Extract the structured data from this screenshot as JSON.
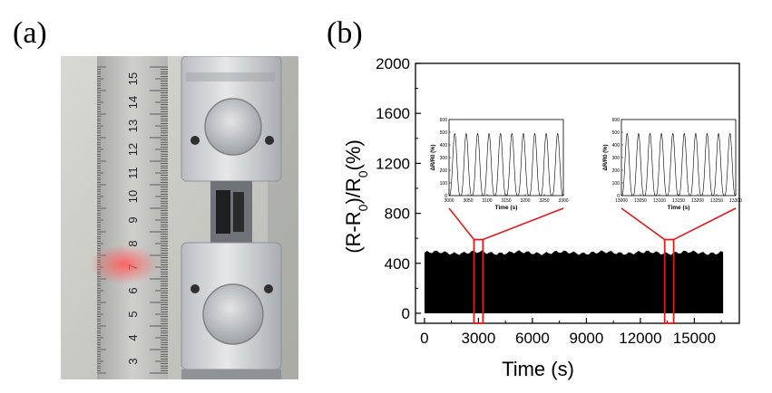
{
  "panels": [
    {
      "label": "(a)"
    },
    {
      "label": "(b)"
    }
  ],
  "photo": {
    "ruler_numbers": [
      "15",
      "14",
      "13",
      "12",
      "11",
      "10",
      "9",
      "8",
      "7",
      "6",
      "5",
      "4",
      "3"
    ]
  },
  "chart_data": {
    "type": "area",
    "xlabel": "Time (s)",
    "ylabel": "(R-R0)/R0(%)",
    "xlim": [
      -500,
      17500
    ],
    "ylim": [
      -80,
      2000
    ],
    "xticks": [
      0,
      3000,
      6000,
      9000,
      12000,
      15000
    ],
    "yticks": [
      0,
      400,
      800,
      1200,
      1600,
      2000
    ],
    "series": [
      {
        "x_range": [
          0,
          16600
        ],
        "min": 0,
        "max": 500,
        "description": "dense cyclic signal"
      }
    ],
    "highlights": [
      {
        "x_range": [
          2750,
          3250
        ],
        "y_range": [
          -80,
          590
        ],
        "color": "#e01b1b"
      },
      {
        "x_range": [
          13350,
          13850
        ],
        "y_range": [
          -80,
          590
        ],
        "color": "#e01b1b"
      }
    ],
    "insets": [
      {
        "xlabel": "Time (s)",
        "ylabel": "ΔR/R0 (%)",
        "xlim": [
          3000,
          3300
        ],
        "ylim": [
          0,
          600
        ],
        "xticks": [
          3000,
          3050,
          3100,
          3150,
          3200,
          3250,
          3300
        ],
        "yticks": [
          0,
          100,
          200,
          300,
          400,
          500,
          600
        ],
        "cycles": 10,
        "peak": 490
      },
      {
        "xlabel": "Time (s)",
        "ylabel": "ΔR/R0 (%)",
        "xlim": [
          13000,
          13300
        ],
        "ylim": [
          0,
          600
        ],
        "xticks": [
          13000,
          13050,
          13100,
          13150,
          13200,
          13250,
          13300
        ],
        "yticks": [
          0,
          100,
          200,
          300,
          400,
          500,
          600
        ],
        "cycles": 10,
        "peak": 490
      }
    ]
  }
}
